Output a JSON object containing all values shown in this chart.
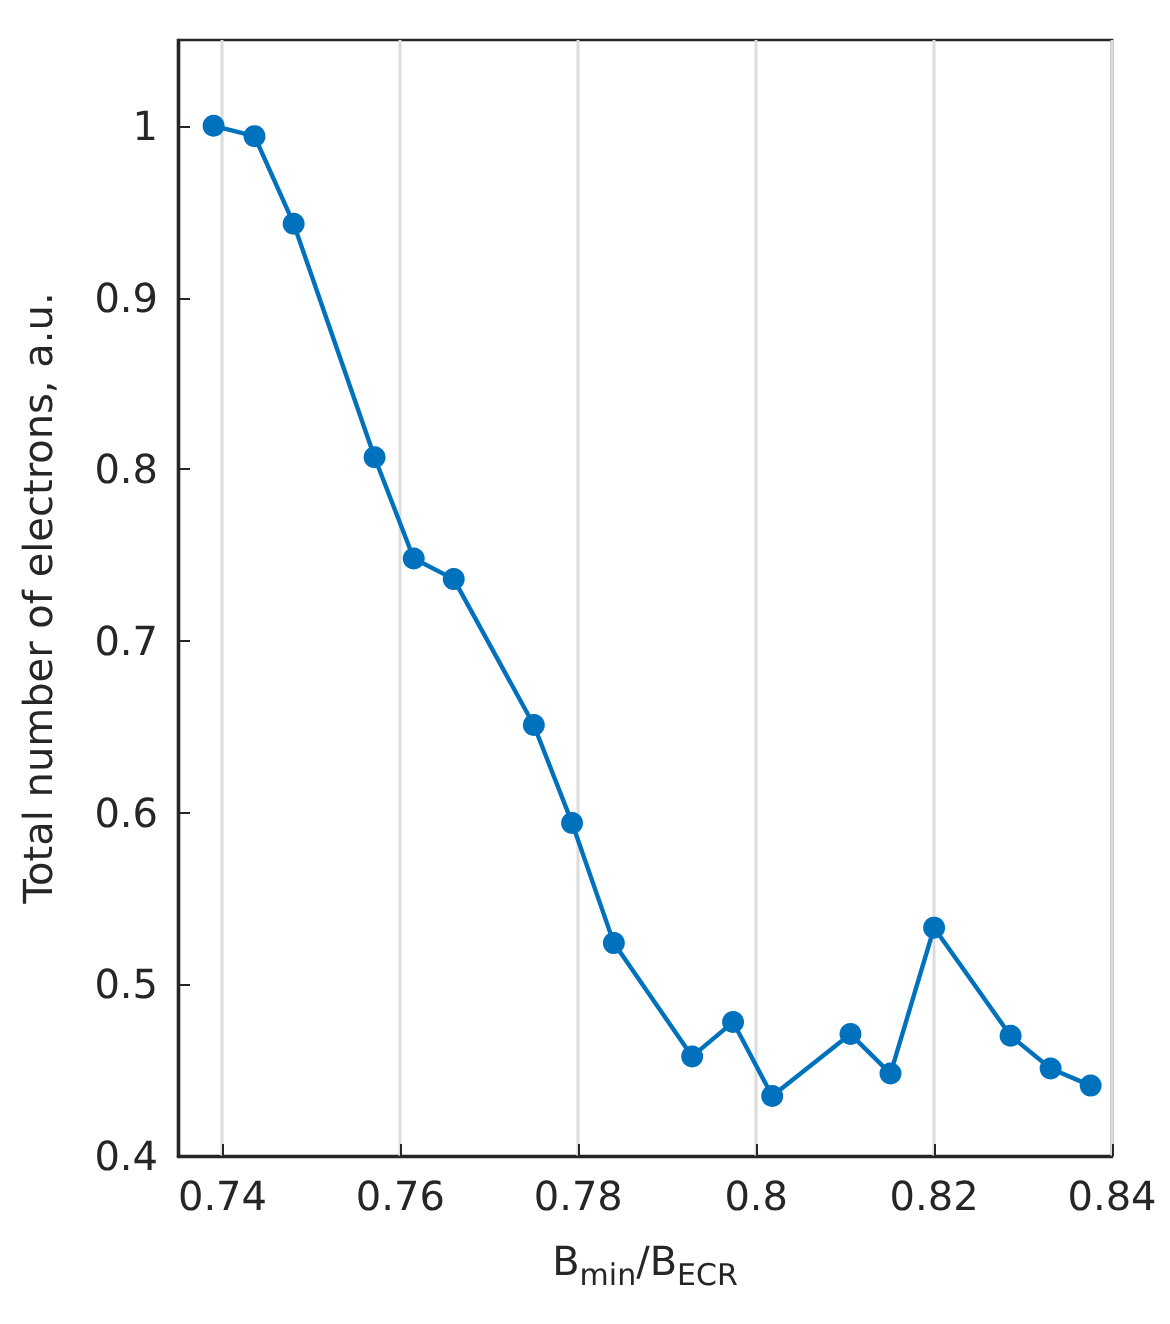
{
  "chart_data": {
    "type": "line",
    "xlabel": "B$_{min}$/B$_{ECR}$",
    "ylabel": "Total number of electrons, a.u.",
    "x": [
      0.739,
      0.7436,
      0.748,
      0.7571,
      0.7615,
      0.766,
      0.775,
      0.7793,
      0.784,
      0.7928,
      0.7974,
      0.8018,
      0.8106,
      0.8151,
      0.82,
      0.8286,
      0.8331,
      0.8376
    ],
    "series": [
      {
        "color": "#0072bd",
        "values": [
          1.0,
          0.994,
          0.943,
          0.807,
          0.748,
          0.736,
          0.651,
          0.594,
          0.524,
          0.458,
          0.478,
          0.435,
          0.471,
          0.448,
          0.533,
          0.47,
          0.451,
          0.441
        ]
      }
    ],
    "xlim": [
      0.735,
      0.84
    ],
    "xticks": [
      0.74,
      0.76,
      0.78,
      0.8,
      0.82,
      0.84
    ],
    "ylim": [
      0.4,
      1.05
    ],
    "yticks": [
      0.4,
      0.5,
      0.6,
      0.7,
      0.8,
      0.9,
      1
    ],
    "grid": "x",
    "marker": "circle",
    "line_style": "solid"
  }
}
